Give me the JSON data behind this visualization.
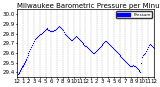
{
  "title": "Milwaukee Barometric Pressure per Minute (24 Hours)",
  "xlabel": "",
  "ylabel": "",
  "bg_color": "#ffffff",
  "plot_bg_color": "#ffffff",
  "dot_color": "#0000ff",
  "legend_color": "#0000ff",
  "grid_color": "#aaaaaa",
  "ylim": [
    29.35,
    30.05
  ],
  "xlim": [
    0,
    1445
  ],
  "yticks": [
    29.4,
    29.5,
    29.6,
    29.7,
    29.8,
    29.9,
    30.0
  ],
  "ytick_labels": [
    "29.4",
    "29.5",
    "29.6",
    "29.7",
    "29.8",
    "29.9",
    "30.0"
  ],
  "xtick_positions": [
    0,
    60,
    120,
    180,
    240,
    300,
    360,
    420,
    480,
    540,
    600,
    660,
    720,
    780,
    840,
    900,
    960,
    1020,
    1080,
    1140,
    1200,
    1260,
    1320,
    1380,
    1440
  ],
  "xtick_labels": [
    "12",
    "1",
    "2",
    "3",
    "4",
    "5",
    "6",
    "7",
    "8",
    "9",
    "10",
    "11",
    "12",
    "1",
    "2",
    "3",
    "4",
    "5",
    "6",
    "7",
    "8",
    "9",
    "10",
    "11",
    "12"
  ],
  "data_x": [
    5,
    10,
    15,
    20,
    25,
    30,
    35,
    40,
    45,
    50,
    55,
    60,
    65,
    70,
    75,
    80,
    85,
    90,
    95,
    100,
    110,
    120,
    130,
    140,
    150,
    160,
    170,
    180,
    190,
    200,
    210,
    220,
    230,
    240,
    250,
    260,
    270,
    280,
    290,
    300,
    310,
    320,
    330,
    340,
    350,
    360,
    370,
    380,
    390,
    400,
    410,
    420,
    430,
    440,
    450,
    460,
    470,
    480,
    490,
    500,
    510,
    520,
    530,
    540,
    550,
    560,
    570,
    580,
    590,
    600,
    610,
    620,
    630,
    640,
    650,
    660,
    670,
    680,
    690,
    700,
    710,
    720,
    730,
    740,
    750,
    760,
    770,
    780,
    790,
    800,
    810,
    820,
    830,
    840,
    850,
    860,
    870,
    880,
    890,
    900,
    910,
    920,
    930,
    940,
    950,
    960,
    970,
    980,
    990,
    1000,
    1010,
    1020,
    1030,
    1040,
    1050,
    1060,
    1070,
    1080,
    1090,
    1100,
    1110,
    1120,
    1130,
    1140,
    1150,
    1160,
    1170,
    1180,
    1190,
    1200,
    1210,
    1220,
    1230,
    1240,
    1250,
    1260,
    1270,
    1280,
    1290,
    1300,
    1310,
    1320,
    1330,
    1340,
    1350,
    1360,
    1370,
    1380,
    1390,
    1400,
    1410,
    1420,
    1430,
    1440
  ],
  "data_y": [
    29.38,
    29.38,
    29.39,
    29.39,
    29.4,
    29.41,
    29.42,
    29.43,
    29.44,
    29.45,
    29.46,
    29.47,
    29.48,
    29.49,
    29.5,
    29.51,
    29.52,
    29.53,
    29.54,
    29.56,
    29.58,
    29.6,
    29.62,
    29.64,
    29.66,
    29.68,
    29.7,
    29.72,
    29.74,
    29.75,
    29.76,
    29.77,
    29.78,
    29.79,
    29.8,
    29.81,
    29.82,
    29.83,
    29.84,
    29.85,
    29.86,
    29.85,
    29.84,
    29.84,
    29.83,
    29.83,
    29.83,
    29.83,
    29.84,
    29.84,
    29.85,
    29.86,
    29.87,
    29.88,
    29.87,
    29.86,
    29.85,
    29.84,
    29.82,
    29.8,
    29.79,
    29.78,
    29.77,
    29.76,
    29.75,
    29.74,
    29.73,
    29.73,
    29.74,
    29.75,
    29.76,
    29.77,
    29.76,
    29.75,
    29.74,
    29.73,
    29.72,
    29.71,
    29.7,
    29.69,
    29.68,
    29.67,
    29.67,
    29.66,
    29.65,
    29.64,
    29.63,
    29.62,
    29.61,
    29.6,
    29.6,
    29.61,
    29.62,
    29.63,
    29.64,
    29.65,
    29.66,
    29.67,
    29.68,
    29.69,
    29.7,
    29.71,
    29.72,
    29.72,
    29.71,
    29.7,
    29.69,
    29.68,
    29.67,
    29.66,
    29.65,
    29.64,
    29.63,
    29.62,
    29.61,
    29.6,
    29.59,
    29.58,
    29.57,
    29.56,
    29.55,
    29.54,
    29.53,
    29.52,
    29.51,
    29.5,
    29.49,
    29.48,
    29.47,
    29.46,
    29.47,
    29.48,
    29.47,
    29.46,
    29.45,
    29.44,
    29.43,
    29.42,
    29.41,
    29.4,
    29.5,
    29.56,
    29.58,
    29.59,
    29.6,
    29.62,
    29.64,
    29.66,
    29.68,
    29.69,
    29.68,
    29.67,
    29.66,
    29.65
  ],
  "title_fontsize": 5,
  "tick_fontsize": 4,
  "dot_size": 0.8
}
